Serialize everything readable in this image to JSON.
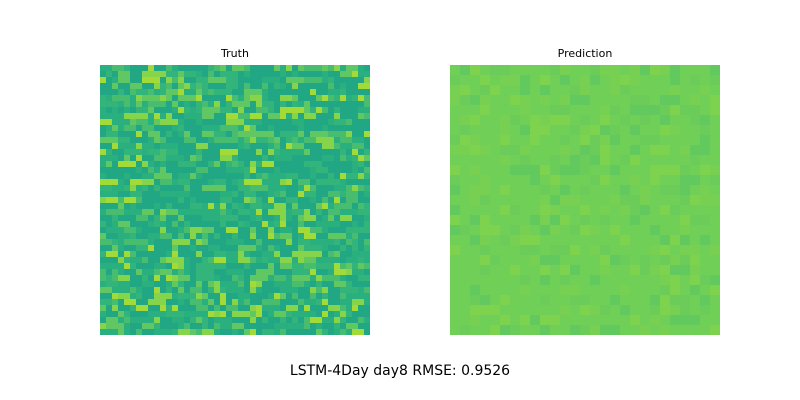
{
  "caption": "LSTM-4Day day8 RMSE: 0.9526",
  "chart_data": [
    {
      "type": "heatmap",
      "title": "Truth",
      "colormap": "viridis",
      "grid": false,
      "axes_visible": false,
      "base_color": "#2ab07f",
      "noise_colors": [
        "#22a785",
        "#33b47b",
        "#48bd6f",
        "#60c762",
        "#85d44a",
        "#a2da37"
      ]
    },
    {
      "type": "heatmap",
      "title": "Prediction",
      "colormap": "viridis",
      "grid": false,
      "axes_visible": false,
      "base_color": "#70cf57",
      "noise_colors": [
        "#62c95e",
        "#6ccc5a",
        "#77d052",
        "#7ed34e"
      ]
    }
  ]
}
